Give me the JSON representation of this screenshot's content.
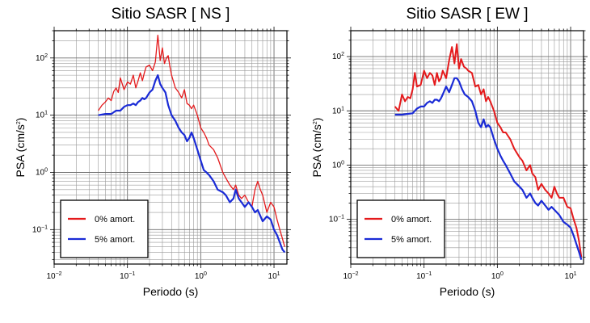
{
  "chart_data": [
    {
      "type": "line",
      "title": "Sitio SASR [ NS ]",
      "xlabel": "Periodo (s)",
      "ylabel_base": "PSA (cm/s",
      "ylabel_sup": "2",
      "ylabel_end": ")",
      "xscale": "log",
      "yscale": "log",
      "xlim": [
        0.01,
        15
      ],
      "ylim": [
        0.025,
        300
      ],
      "grid": true,
      "legend_position": "bottom-left",
      "xticks": [
        {
          "value": 0.01,
          "base": "10",
          "exp": "−2"
        },
        {
          "value": 0.1,
          "base": "10",
          "exp": "−1"
        },
        {
          "value": 1,
          "base": "10",
          "exp": "0"
        },
        {
          "value": 10,
          "base": "10",
          "exp": "1"
        }
      ],
      "yticks": [
        {
          "value": 0.1,
          "base": "10",
          "exp": "−1"
        },
        {
          "value": 1,
          "base": "10",
          "exp": "0"
        },
        {
          "value": 10,
          "base": "10",
          "exp": "1"
        },
        {
          "value": 100,
          "base": "10",
          "exp": "2"
        }
      ],
      "series": [
        {
          "name": "0% amort.",
          "color": "#e41a1c",
          "width": 1.3,
          "x": [
            0.04,
            0.045,
            0.05,
            0.055,
            0.06,
            0.065,
            0.07,
            0.075,
            0.08,
            0.09,
            0.1,
            0.11,
            0.12,
            0.13,
            0.14,
            0.15,
            0.16,
            0.17,
            0.18,
            0.2,
            0.22,
            0.24,
            0.26,
            0.28,
            0.3,
            0.32,
            0.34,
            0.36,
            0.38,
            0.4,
            0.45,
            0.5,
            0.55,
            0.6,
            0.65,
            0.7,
            0.75,
            0.8,
            0.9,
            1.0,
            1.1,
            1.2,
            1.3,
            1.5,
            1.7,
            2.0,
            2.2,
            2.5,
            2.8,
            3.0,
            3.3,
            3.6,
            4.0,
            4.5,
            5.0,
            5.5,
            6.0,
            6.5,
            7.0,
            8.0,
            9.0,
            10.0,
            11.0,
            12.0,
            13.0,
            14.0
          ],
          "y": [
            12,
            15,
            17,
            20,
            18,
            26,
            30,
            25,
            45,
            28,
            38,
            35,
            50,
            30,
            40,
            55,
            40,
            55,
            70,
            75,
            60,
            85,
            250,
            90,
            150,
            80,
            100,
            110,
            70,
            50,
            30,
            25,
            20,
            28,
            16,
            15,
            13,
            15,
            10,
            6,
            5,
            4,
            3,
            2.5,
            1.8,
            1.0,
            0.8,
            0.6,
            0.5,
            0.6,
            0.4,
            0.35,
            0.4,
            0.3,
            0.25,
            0.5,
            0.7,
            0.5,
            0.4,
            0.2,
            0.3,
            0.25,
            0.15,
            0.1,
            0.07,
            0.05
          ]
        },
        {
          "name": "5% amort.",
          "color": "#1a2bd6",
          "width": 2.2,
          "x": [
            0.04,
            0.05,
            0.06,
            0.07,
            0.08,
            0.09,
            0.1,
            0.11,
            0.12,
            0.13,
            0.14,
            0.15,
            0.16,
            0.17,
            0.18,
            0.2,
            0.22,
            0.24,
            0.26,
            0.28,
            0.3,
            0.33,
            0.36,
            0.4,
            0.45,
            0.5,
            0.55,
            0.6,
            0.65,
            0.7,
            0.75,
            0.8,
            0.9,
            1.0,
            1.1,
            1.2,
            1.3,
            1.5,
            1.7,
            2.0,
            2.2,
            2.5,
            2.8,
            3.0,
            3.3,
            3.6,
            4.0,
            4.5,
            5.0,
            5.5,
            6.0,
            7.0,
            8.0,
            9.0,
            10.0,
            11.0,
            12.0,
            13.0,
            14.0
          ],
          "y": [
            10,
            10.5,
            10.5,
            12,
            12,
            14,
            15,
            15,
            16,
            15,
            17,
            18,
            20,
            19,
            20,
            25,
            28,
            40,
            50,
            35,
            30,
            25,
            15,
            10,
            8,
            6,
            5,
            4.5,
            3.5,
            4,
            5,
            4,
            2.5,
            1.6,
            1.1,
            1.0,
            0.9,
            0.7,
            0.5,
            0.45,
            0.4,
            0.3,
            0.35,
            0.5,
            0.35,
            0.3,
            0.25,
            0.3,
            0.25,
            0.2,
            0.22,
            0.14,
            0.17,
            0.15,
            0.1,
            0.08,
            0.06,
            0.045,
            0.04
          ]
        }
      ]
    },
    {
      "type": "line",
      "title": "Sitio SASR [ EW ]",
      "xlabel": "Periodo (s)",
      "ylabel_base": "PSA (cm/s",
      "ylabel_sup": "2",
      "ylabel_end": ")",
      "xscale": "log",
      "yscale": "log",
      "xlim": [
        0.01,
        15
      ],
      "ylim": [
        0.015,
        300
      ],
      "grid": true,
      "legend_position": "bottom-left",
      "xticks": [
        {
          "value": 0.01,
          "base": "10",
          "exp": "−2"
        },
        {
          "value": 0.1,
          "base": "10",
          "exp": "−1"
        },
        {
          "value": 1,
          "base": "10",
          "exp": "0"
        },
        {
          "value": 10,
          "base": "10",
          "exp": "1"
        }
      ],
      "yticks": [
        {
          "value": 0.1,
          "base": "10",
          "exp": "−1"
        },
        {
          "value": 1,
          "base": "10",
          "exp": "0"
        },
        {
          "value": 10,
          "base": "10",
          "exp": "1"
        },
        {
          "value": 100,
          "base": "10",
          "exp": "2"
        }
      ],
      "series": [
        {
          "name": "0% amort.",
          "color": "#e41a1c",
          "width": 2.0,
          "x": [
            0.04,
            0.045,
            0.05,
            0.055,
            0.06,
            0.065,
            0.07,
            0.075,
            0.08,
            0.09,
            0.1,
            0.11,
            0.12,
            0.13,
            0.14,
            0.15,
            0.16,
            0.17,
            0.18,
            0.2,
            0.22,
            0.24,
            0.26,
            0.28,
            0.3,
            0.32,
            0.35,
            0.38,
            0.4,
            0.45,
            0.5,
            0.55,
            0.6,
            0.65,
            0.7,
            0.75,
            0.8,
            0.9,
            1.0,
            1.1,
            1.2,
            1.3,
            1.5,
            1.7,
            2.0,
            2.2,
            2.5,
            2.8,
            3.0,
            3.3,
            3.6,
            4.0,
            4.5,
            5.0,
            5.5,
            6.0,
            6.5,
            7.0,
            8.0,
            9.0,
            10.0,
            11.0,
            12.0,
            13.0,
            14.0
          ],
          "y": [
            12,
            10,
            20,
            15,
            18,
            17,
            25,
            50,
            28,
            30,
            55,
            40,
            50,
            45,
            30,
            50,
            35,
            40,
            55,
            40,
            85,
            150,
            75,
            170,
            60,
            90,
            65,
            60,
            55,
            50,
            28,
            30,
            20,
            25,
            15,
            18,
            15,
            10,
            6,
            5,
            4,
            4,
            3,
            2,
            1.4,
            1.2,
            0.8,
            1.0,
            0.7,
            0.6,
            0.35,
            0.45,
            0.35,
            0.3,
            0.25,
            0.4,
            0.3,
            0.25,
            0.25,
            0.17,
            0.16,
            0.1,
            0.07,
            0.04,
            0.02
          ]
        },
        {
          "name": "5% amort.",
          "color": "#1a2bd6",
          "width": 2.2,
          "x": [
            0.04,
            0.05,
            0.06,
            0.07,
            0.08,
            0.09,
            0.1,
            0.11,
            0.12,
            0.13,
            0.14,
            0.15,
            0.16,
            0.17,
            0.18,
            0.2,
            0.22,
            0.24,
            0.26,
            0.28,
            0.3,
            0.33,
            0.36,
            0.4,
            0.45,
            0.5,
            0.55,
            0.6,
            0.65,
            0.7,
            0.75,
            0.8,
            0.9,
            1.0,
            1.1,
            1.2,
            1.3,
            1.5,
            1.7,
            2.0,
            2.2,
            2.5,
            2.8,
            3.0,
            3.3,
            3.6,
            4.0,
            4.5,
            5.0,
            5.5,
            6.0,
            7.0,
            8.0,
            9.0,
            10.0,
            11.0,
            12.0,
            13.0,
            14.0
          ],
          "y": [
            8.5,
            8.5,
            8.8,
            9,
            11,
            12,
            12,
            14,
            15,
            14,
            16,
            16,
            15,
            17,
            20,
            28,
            22,
            30,
            40,
            40,
            35,
            25,
            20,
            18,
            15,
            10,
            6,
            5,
            7,
            5,
            5.5,
            5,
            3,
            2,
            1.5,
            1.2,
            1.0,
            0.7,
            0.5,
            0.4,
            0.35,
            0.25,
            0.3,
            0.25,
            0.2,
            0.18,
            0.22,
            0.18,
            0.15,
            0.17,
            0.15,
            0.12,
            0.09,
            0.08,
            0.07,
            0.05,
            0.035,
            0.025,
            0.018
          ]
        }
      ]
    }
  ]
}
